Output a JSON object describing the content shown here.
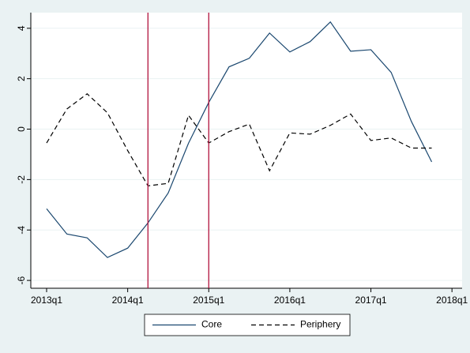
{
  "chart_data": {
    "type": "line",
    "x": [
      212,
      213,
      214,
      215,
      216,
      217,
      218,
      219,
      220,
      221,
      222,
      223,
      224,
      225,
      226,
      227,
      228,
      229,
      230,
      231
    ],
    "series": [
      {
        "name": "Core",
        "color": "#1a476f",
        "dash": "none",
        "values": [
          -3.16,
          -4.16,
          -4.31,
          -5.09,
          -4.72,
          -3.72,
          -2.53,
          -0.56,
          1.06,
          2.47,
          2.81,
          3.81,
          3.06,
          3.47,
          4.25,
          3.09,
          3.15,
          2.25,
          0.3,
          -1.3
        ]
      },
      {
        "name": "Periphery",
        "color": "#000000",
        "dash": "6,4",
        "values": [
          -0.55,
          0.8,
          1.4,
          0.65,
          -0.85,
          -2.25,
          -2.15,
          0.55,
          -0.55,
          -0.1,
          0.2,
          -1.65,
          -0.15,
          -0.2,
          0.15,
          0.6,
          -0.45,
          -0.35,
          -0.75,
          -0.75
        ]
      }
    ],
    "xlim": [
      211.22,
      232.5
    ],
    "xticks": [
      {
        "value": 212,
        "label": "2013q1"
      },
      {
        "value": 216,
        "label": "2014q1"
      },
      {
        "value": 220,
        "label": "2015q1"
      },
      {
        "value": 224,
        "label": "2016q1"
      },
      {
        "value": 228,
        "label": "2017q1"
      },
      {
        "value": 232,
        "label": "2018q1"
      }
    ],
    "ylim": [
      -6.31,
      4.62
    ],
    "yticks": [
      -6,
      -4,
      -2,
      0,
      2,
      4
    ],
    "grid": true,
    "vlines": [
      217,
      220
    ],
    "vline_color": "#b0123d",
    "legend": "bottom"
  }
}
